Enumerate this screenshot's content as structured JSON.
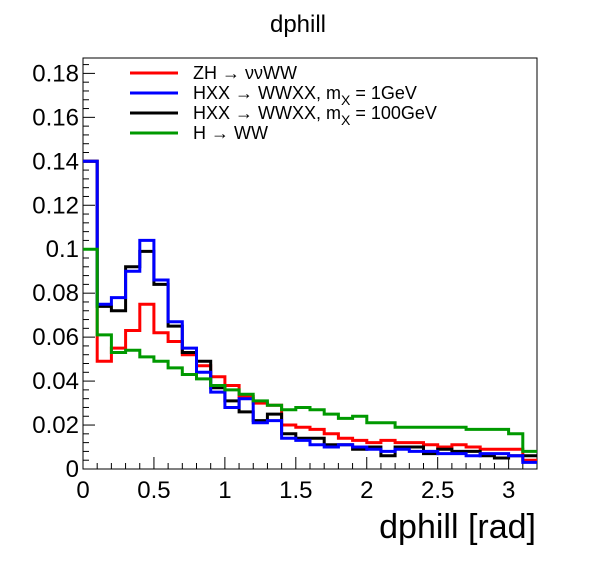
{
  "chart_data": {
    "type": "line",
    "title": "dphill",
    "xlabel": "dphill [rad]",
    "ylabel": "",
    "xlim": [
      0,
      3.2
    ],
    "ylim": [
      0,
      0.187
    ],
    "grid": false,
    "legend_position": "top-left",
    "x_ticks": [
      "0",
      "0.5",
      "1",
      "1.5",
      "2",
      "2.5",
      "3"
    ],
    "y_ticks": [
      "0",
      "0.02",
      "0.04",
      "0.06",
      "0.08",
      "0.1",
      "0.12",
      "0.14",
      "0.16",
      "0.18"
    ],
    "bin_edges": [
      0,
      0.1,
      0.2,
      0.3,
      0.4,
      0.5,
      0.6,
      0.7,
      0.8,
      0.9,
      1.0,
      1.1,
      1.2,
      1.3,
      1.4,
      1.5,
      1.6,
      1.7,
      1.8,
      1.9,
      2.0,
      2.1,
      2.2,
      2.3,
      2.4,
      2.5,
      2.6,
      2.7,
      2.8,
      2.9,
      3.0,
      3.1,
      3.2
    ],
    "series": [
      {
        "name": "ZH → ννWW",
        "color": "#ff0000",
        "values": [
          0.14,
          0.049,
          0.055,
          0.063,
          0.075,
          0.062,
          0.058,
          0.052,
          0.047,
          0.042,
          0.038,
          0.033,
          0.03,
          0.029,
          0.02,
          0.019,
          0.018,
          0.016,
          0.014,
          0.013,
          0.012,
          0.013,
          0.012,
          0.012,
          0.011,
          0.01,
          0.011,
          0.01,
          0.009,
          0.009,
          0.009,
          0.004
        ]
      },
      {
        "name": "HXX → WWXX, m_X = 1GeV",
        "name_main": "HXX → WWXX, m",
        "name_sub": "X",
        "name_tail": " = 1GeV",
        "color": "#0000ff",
        "values": [
          0.14,
          0.075,
          0.078,
          0.09,
          0.104,
          0.086,
          0.067,
          0.055,
          0.044,
          0.035,
          0.028,
          0.032,
          0.021,
          0.022,
          0.014,
          0.013,
          0.011,
          0.01,
          0.011,
          0.01,
          0.009,
          0.008,
          0.009,
          0.008,
          0.008,
          0.007,
          0.007,
          0.006,
          0.007,
          0.007,
          0.006,
          0.003
        ]
      },
      {
        "name": "HXX → WWXX, m_X = 100GeV",
        "name_main": "HXX → WWXX, m",
        "name_sub": "X",
        "name_tail": " = 100GeV",
        "color": "#000000",
        "values": [
          0.14,
          0.074,
          0.072,
          0.092,
          0.099,
          0.084,
          0.065,
          0.053,
          0.049,
          0.037,
          0.031,
          0.026,
          0.022,
          0.025,
          0.016,
          0.014,
          0.014,
          0.011,
          0.011,
          0.009,
          0.01,
          0.006,
          0.01,
          0.01,
          0.007,
          0.009,
          0.008,
          0.008,
          0.006,
          0.005,
          0.006,
          0.006
        ]
      },
      {
        "name": "H → WW",
        "color": "#009900",
        "values": [
          0.1,
          0.061,
          0.053,
          0.054,
          0.051,
          0.049,
          0.046,
          0.043,
          0.041,
          0.038,
          0.036,
          0.034,
          0.031,
          0.029,
          0.027,
          0.028,
          0.027,
          0.025,
          0.023,
          0.024,
          0.021,
          0.021,
          0.019,
          0.019,
          0.019,
          0.019,
          0.019,
          0.018,
          0.018,
          0.018,
          0.016,
          0.008
        ]
      }
    ]
  }
}
